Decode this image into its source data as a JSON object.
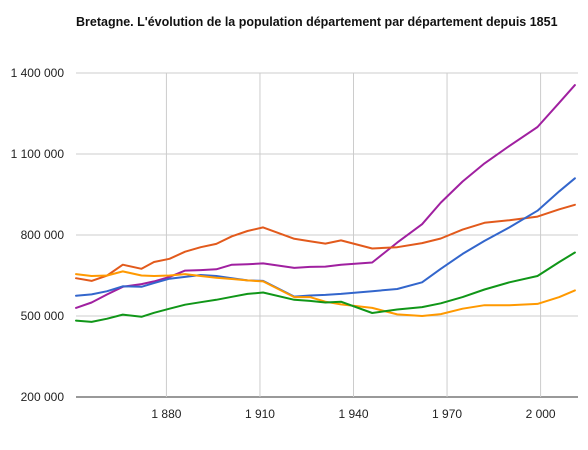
{
  "chart_data": {
    "type": "line",
    "title": "Bretagne. L'évolution de la population département par département depuis 1851",
    "xlabel": "",
    "ylabel": "",
    "xlim": [
      1851,
      2012
    ],
    "ylim": [
      200000,
      1400000
    ],
    "grid": true,
    "legend": "none",
    "y_ticks": [
      {
        "value": 200000,
        "label": "200 000"
      },
      {
        "value": 500000,
        "label": "500 000"
      },
      {
        "value": 800000,
        "label": "800 000"
      },
      {
        "value": 1100000,
        "label": "1 100 000"
      },
      {
        "value": 1400000,
        "label": "1 400 000"
      }
    ],
    "x_ticks": [
      {
        "value": 1880,
        "label": "1 880"
      },
      {
        "value": 1910,
        "label": "1 910"
      },
      {
        "value": 1940,
        "label": "1 940"
      },
      {
        "value": 1970,
        "label": "1 970"
      },
      {
        "value": 2000,
        "label": "2 000"
      }
    ],
    "series": [
      {
        "color": "#a020a0",
        "x": [
          1851,
          1856,
          1861,
          1866,
          1872,
          1876,
          1881,
          1886,
          1891,
          1896,
          1901,
          1906,
          1911,
          1921,
          1926,
          1931,
          1936,
          1946,
          1954,
          1962,
          1968,
          1975,
          1982,
          1990,
          1999,
          2006,
          2011
        ],
        "y": [
          530000,
          550000,
          580000,
          608000,
          618000,
          628000,
          645000,
          668000,
          670000,
          673000,
          690000,
          692000,
          695000,
          678000,
          682000,
          683000,
          690000,
          698000,
          772000,
          840000,
          920000,
          998000,
          1065000,
          1130000,
          1200000,
          1290000,
          1355000
        ]
      },
      {
        "color": "#e25a1c",
        "x": [
          1851,
          1856,
          1861,
          1866,
          1872,
          1876,
          1881,
          1886,
          1891,
          1896,
          1901,
          1906,
          1911,
          1921,
          1926,
          1931,
          1936,
          1946,
          1954,
          1962,
          1968,
          1975,
          1982,
          1990,
          1999,
          2006,
          2011
        ],
        "y": [
          640000,
          630000,
          650000,
          690000,
          675000,
          700000,
          712000,
          738000,
          755000,
          767000,
          795000,
          815000,
          828000,
          786000,
          777000,
          768000,
          780000,
          750000,
          755000,
          770000,
          787000,
          820000,
          845000,
          855000,
          868000,
          895000,
          912000
        ]
      },
      {
        "color": "#3366cc",
        "x": [
          1851,
          1856,
          1861,
          1866,
          1872,
          1876,
          1881,
          1886,
          1891,
          1896,
          1901,
          1906,
          1911,
          1921,
          1926,
          1931,
          1936,
          1946,
          1954,
          1962,
          1968,
          1975,
          1982,
          1990,
          1999,
          2006,
          2011
        ],
        "y": [
          575000,
          580000,
          592000,
          610000,
          608000,
          622000,
          638000,
          645000,
          652000,
          648000,
          640000,
          632000,
          630000,
          572000,
          576000,
          578000,
          582000,
          592000,
          600000,
          625000,
          675000,
          730000,
          778000,
          828000,
          890000,
          962000,
          1010000
        ]
      },
      {
        "color": "#ff9900",
        "x": [
          1851,
          1856,
          1861,
          1866,
          1872,
          1876,
          1881,
          1886,
          1891,
          1896,
          1901,
          1906,
          1911,
          1921,
          1926,
          1931,
          1936,
          1946,
          1954,
          1962,
          1968,
          1975,
          1982,
          1990,
          1999,
          2006,
          2011
        ],
        "y": [
          655000,
          648000,
          650000,
          665000,
          650000,
          648000,
          650000,
          655000,
          648000,
          642000,
          637000,
          632000,
          628000,
          570000,
          570000,
          553000,
          543000,
          530000,
          506000,
          500000,
          507000,
          527000,
          540000,
          540000,
          545000,
          570000,
          595000
        ]
      },
      {
        "color": "#109618",
        "x": [
          1851,
          1856,
          1861,
          1866,
          1872,
          1876,
          1881,
          1886,
          1891,
          1896,
          1901,
          1906,
          1911,
          1921,
          1926,
          1931,
          1936,
          1946,
          1954,
          1962,
          1968,
          1975,
          1982,
          1990,
          1999,
          2006,
          2011
        ],
        "y": [
          483000,
          478000,
          490000,
          505000,
          497000,
          512000,
          527000,
          542000,
          551000,
          560000,
          571000,
          582000,
          587000,
          560000,
          556000,
          550000,
          553000,
          511000,
          524000,
          533000,
          547000,
          570000,
          598000,
          625000,
          648000,
          700000,
          735000
        ]
      }
    ]
  }
}
